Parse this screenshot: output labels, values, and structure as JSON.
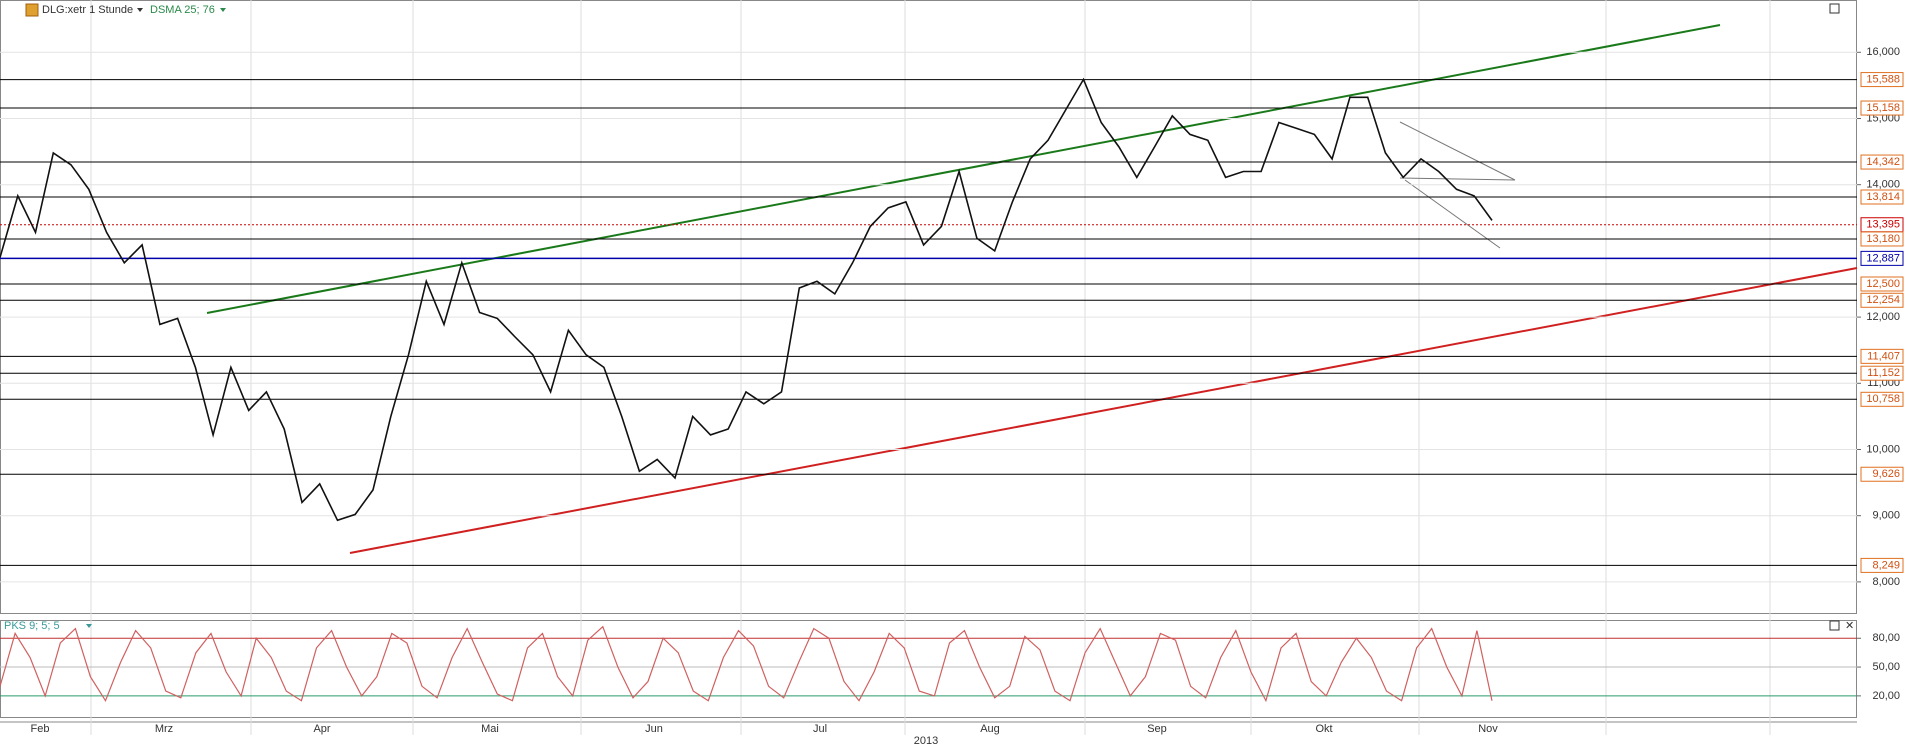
{
  "chart_data": [
    {
      "type": "line",
      "title": "DLG:xetr 1 Stunde",
      "subtitle": "DSMA 25; 76",
      "xticks": [
        "Feb",
        "Mrz",
        "Apr",
        "Mai",
        "Jun",
        "Jul",
        "Aug",
        "Sep",
        "Okt",
        "Nov"
      ],
      "xlabel": "2013",
      "ylim": [
        7530,
        16790
      ],
      "yticks": [
        {
          "value": 8000,
          "label": "8,000"
        },
        {
          "value": 9000,
          "label": "9,000"
        },
        {
          "value": 10000,
          "label": "10,000"
        },
        {
          "value": 11000,
          "label": "11,000"
        },
        {
          "value": 12000,
          "label": "12,000"
        },
        {
          "value": 14000,
          "label": "14,000"
        },
        {
          "value": 15000,
          "label": "15,000"
        },
        {
          "value": 16000,
          "label": "16,000"
        }
      ],
      "grid": true,
      "levels": [
        {
          "value": 15588,
          "label": "15,588",
          "color": "#000000"
        },
        {
          "value": 15158,
          "label": "15,158",
          "color": "#000000"
        },
        {
          "value": 14342,
          "label": "14,342",
          "color": "#000000"
        },
        {
          "value": 13814,
          "label": "13,814",
          "color": "#000000"
        },
        {
          "value": 13395,
          "label": "13,395",
          "color": "#cc0000"
        },
        {
          "value": 13180,
          "label": "13,180",
          "color": "#000000"
        },
        {
          "value": 12887,
          "label": "12,887",
          "color": "#0000aa"
        },
        {
          "value": 12500,
          "label": "12,500",
          "color": "#000000"
        },
        {
          "value": 12254,
          "label": "12,254",
          "color": "#000000"
        },
        {
          "value": 11407,
          "label": "11,407",
          "color": "#000000"
        },
        {
          "value": 11152,
          "label": "11,152",
          "color": "#000000"
        },
        {
          "value": 10758,
          "label": "10,758",
          "color": "#000000"
        },
        {
          "value": 9626,
          "label": "9,626",
          "color": "#000000"
        },
        {
          "value": 8249,
          "label": "8,249",
          "color": "#000000"
        }
      ],
      "series": [
        {
          "color": "#111111",
          "values": [
            12900,
            13830,
            13280,
            14480,
            14300,
            13930,
            13280,
            12820,
            13090,
            11890,
            11980,
            11240,
            10220,
            11240,
            10590,
            10870,
            10310,
            9200,
            9480,
            8930,
            9020,
            9390,
            10500,
            11430,
            12540,
            11890,
            12820,
            12070,
            11980,
            11700,
            11430,
            10870,
            11800,
            11430,
            11240,
            10500,
            9670,
            9850,
            9570,
            10500,
            10220,
            10310,
            10870,
            10690,
            10870,
            12440,
            12540,
            12350,
            12820,
            13370,
            13650,
            13740,
            13090,
            13370,
            14200,
            13190,
            13000,
            13740,
            14390,
            14670,
            15130,
            15590,
            14940,
            14570,
            14110,
            14570,
            15040,
            14760,
            14670,
            14110,
            14200,
            14200,
            14940,
            14850,
            14760,
            14390,
            15320,
            15320,
            14480,
            14110,
            14390,
            14200,
            13930,
            13830,
            13460
          ]
        }
      ]
    },
    {
      "type": "line",
      "title": "PKS 9; 5; 5",
      "ylim": [
        -2,
        99
      ],
      "yticks": [
        {
          "value": 20,
          "label": "20,00"
        },
        {
          "value": 50,
          "label": "50,00"
        },
        {
          "value": 80,
          "label": "80,00"
        }
      ],
      "series": [
        {
          "color": "#d06060",
          "values": [
            30,
            85,
            60,
            20,
            75,
            90,
            40,
            15,
            55,
            88,
            70,
            25,
            18,
            65,
            85,
            45,
            20,
            80,
            60,
            25,
            15,
            70,
            88,
            50,
            20,
            40,
            85,
            75,
            30,
            18,
            60,
            90,
            55,
            22,
            15,
            70,
            85,
            40,
            20,
            78,
            92,
            50,
            18,
            35,
            80,
            65,
            25,
            15,
            60,
            88,
            72,
            30,
            18,
            55,
            90,
            80,
            35,
            15,
            45,
            85,
            70,
            25,
            20,
            75,
            88,
            50,
            18,
            30,
            82,
            68,
            25,
            15,
            65,
            90,
            55,
            20,
            40,
            85,
            78,
            30,
            18,
            60,
            88,
            45,
            15,
            70,
            85,
            35,
            20,
            55,
            80,
            60,
            25,
            15,
            70,
            90,
            50,
            20,
            88,
            15
          ]
        }
      ]
    }
  ]
}
